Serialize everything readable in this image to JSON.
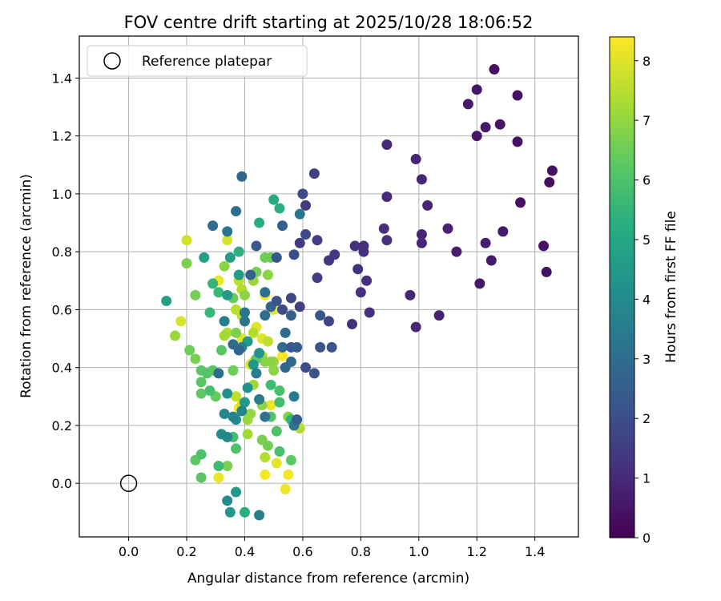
{
  "chart_data": {
    "type": "scatter",
    "title": "FOV centre drift starting at 2025/10/28 18:06:52",
    "xlabel": "Angular distance from reference (arcmin)",
    "ylabel": "Rotation from reference (arcmin)",
    "xlim": [
      -0.17,
      1.55
    ],
    "ylim": [
      -0.185,
      1.545
    ],
    "xticks": [
      0.0,
      0.2,
      0.4,
      0.6,
      0.8,
      1.0,
      1.2,
      1.4
    ],
    "yticks": [
      0.0,
      0.2,
      0.4,
      0.6,
      0.8,
      1.0,
      1.2,
      1.4
    ],
    "xtick_labels": [
      "0.0",
      "0.2",
      "0.4",
      "0.6",
      "0.8",
      "1.0",
      "1.2",
      "1.4"
    ],
    "ytick_labels": [
      "0.0",
      "0.2",
      "0.4",
      "0.6",
      "0.8",
      "1.0",
      "1.2",
      "1.4"
    ],
    "grid": true,
    "colormap": "viridis",
    "colorbar": {
      "label": "Hours from first FF file",
      "range": [
        0,
        8.4
      ],
      "ticks": [
        0,
        1,
        2,
        3,
        4,
        5,
        6,
        7,
        8
      ],
      "tick_labels": [
        "0",
        "1",
        "2",
        "3",
        "4",
        "5",
        "6",
        "7",
        "8"
      ]
    },
    "legend": {
      "position": "top-left",
      "entries": [
        {
          "label": "Reference platepar",
          "marker": "open-circle"
        }
      ]
    },
    "reference_point": {
      "x": 0.0,
      "y": 0.0
    },
    "points": [
      [
        1.26,
        1.43,
        0.3
      ],
      [
        1.2,
        1.36,
        0.5
      ],
      [
        1.34,
        1.34,
        0.4
      ],
      [
        1.17,
        1.31,
        0.6
      ],
      [
        1.28,
        1.24,
        0.5
      ],
      [
        1.23,
        1.23,
        0.6
      ],
      [
        1.2,
        1.2,
        0.5
      ],
      [
        1.34,
        1.18,
        0.4
      ],
      [
        0.89,
        1.17,
        1.0
      ],
      [
        0.99,
        1.12,
        0.9
      ],
      [
        1.46,
        1.08,
        0.4
      ],
      [
        1.45,
        1.04,
        0.3
      ],
      [
        1.01,
        1.05,
        0.9
      ],
      [
        0.89,
        0.99,
        1.0
      ],
      [
        1.35,
        0.97,
        0.4
      ],
      [
        1.03,
        0.96,
        0.9
      ],
      [
        1.1,
        0.88,
        0.8
      ],
      [
        1.29,
        0.87,
        0.6
      ],
      [
        0.88,
        0.88,
        1.1
      ],
      [
        1.01,
        0.86,
        0.9
      ],
      [
        1.23,
        0.83,
        0.7
      ],
      [
        1.01,
        0.83,
        0.9
      ],
      [
        0.89,
        0.84,
        1.1
      ],
      [
        1.43,
        0.82,
        0.4
      ],
      [
        0.81,
        0.82,
        1.1
      ],
      [
        0.78,
        0.82,
        1.2
      ],
      [
        0.81,
        0.8,
        1.1
      ],
      [
        1.13,
        0.8,
        0.7
      ],
      [
        1.25,
        0.77,
        0.6
      ],
      [
        0.82,
        0.7,
        1.1
      ],
      [
        1.21,
        0.69,
        0.6
      ],
      [
        0.79,
        0.74,
        1.2
      ],
      [
        1.44,
        0.73,
        0.4
      ],
      [
        0.97,
        0.65,
        0.9
      ],
      [
        0.8,
        0.66,
        1.1
      ],
      [
        0.83,
        0.59,
        1.1
      ],
      [
        0.77,
        0.55,
        1.2
      ],
      [
        0.99,
        0.54,
        0.9
      ],
      [
        1.07,
        0.58,
        0.8
      ],
      [
        0.59,
        0.83,
        1.4
      ],
      [
        0.71,
        0.79,
        1.3
      ],
      [
        0.69,
        0.77,
        1.3
      ],
      [
        0.65,
        0.84,
        1.5
      ],
      [
        0.61,
        0.96,
        1.4
      ],
      [
        0.64,
        1.07,
        1.6
      ],
      [
        0.65,
        0.71,
        1.5
      ],
      [
        0.59,
        0.61,
        1.6
      ],
      [
        0.69,
        0.56,
        1.7
      ],
      [
        0.6,
        1.0,
        1.9
      ],
      [
        0.61,
        0.86,
        1.9
      ],
      [
        0.57,
        0.79,
        2.0
      ],
      [
        0.56,
        0.64,
        1.8
      ],
      [
        0.53,
        0.6,
        1.9
      ],
      [
        0.61,
        0.4,
        2.0
      ],
      [
        0.64,
        0.38,
        2.1
      ],
      [
        0.66,
        0.47,
        2.2
      ],
      [
        0.7,
        0.47,
        2.1
      ],
      [
        0.39,
        1.06,
        2.8
      ],
      [
        0.51,
        0.78,
        2.2
      ],
      [
        0.51,
        0.63,
        2.1
      ],
      [
        0.44,
        0.82,
        2.3
      ],
      [
        0.53,
        0.89,
        2.5
      ],
      [
        0.66,
        0.58,
        2.3
      ],
      [
        0.37,
        0.94,
        3.0
      ],
      [
        0.29,
        0.89,
        3.1
      ],
      [
        0.34,
        0.87,
        3.3
      ],
      [
        0.59,
        0.93,
        3.3
      ],
      [
        0.56,
        0.58,
        2.6
      ],
      [
        0.47,
        0.66,
        3.1
      ],
      [
        0.49,
        0.61,
        2.7
      ],
      [
        0.58,
        0.47,
        2.5
      ],
      [
        0.56,
        0.47,
        2.4
      ],
      [
        0.53,
        0.47,
        2.9
      ],
      [
        0.54,
        0.52,
        3.0
      ],
      [
        0.56,
        0.42,
        2.9
      ],
      [
        0.54,
        0.4,
        2.8
      ],
      [
        0.47,
        0.58,
        3.1
      ],
      [
        0.42,
        0.72,
        2.6
      ],
      [
        0.4,
        0.59,
        3.3
      ],
      [
        0.4,
        0.56,
        3.3
      ],
      [
        0.38,
        0.46,
        2.7
      ],
      [
        0.36,
        0.48,
        2.9
      ],
      [
        0.33,
        0.56,
        3.6
      ],
      [
        0.31,
        0.38,
        3.0
      ],
      [
        0.39,
        0.47,
        3.6
      ],
      [
        0.44,
        0.38,
        3.5
      ],
      [
        0.47,
        0.23,
        3.2
      ],
      [
        0.45,
        0.29,
        3.5
      ],
      [
        0.57,
        0.3,
        3.5
      ],
      [
        0.58,
        0.22,
        2.5
      ],
      [
        0.57,
        0.2,
        3.3
      ],
      [
        0.33,
        0.24,
        3.8
      ],
      [
        0.34,
        0.16,
        3.9
      ],
      [
        0.32,
        0.17,
        4.0
      ],
      [
        0.36,
        0.23,
        3.7
      ],
      [
        0.39,
        0.25,
        3.8
      ],
      [
        0.37,
        0.22,
        4.0
      ],
      [
        0.34,
        0.31,
        4.2
      ],
      [
        0.4,
        0.28,
        4.5
      ],
      [
        0.41,
        0.33,
        4.2
      ],
      [
        0.43,
        0.41,
        4.4
      ],
      [
        0.45,
        0.45,
        4.3
      ],
      [
        0.41,
        0.49,
        4.5
      ],
      [
        0.34,
        0.65,
        4.4
      ],
      [
        0.38,
        0.72,
        4.6
      ],
      [
        0.35,
        0.78,
        4.6
      ],
      [
        0.26,
        0.78,
        4.7
      ],
      [
        0.5,
        0.98,
        5.1
      ],
      [
        0.52,
        0.95,
        5.3
      ],
      [
        0.45,
        0.9,
        5.2
      ],
      [
        0.38,
        0.8,
        5.3
      ],
      [
        0.13,
        0.63,
        4.7
      ],
      [
        0.29,
        0.69,
        5.5
      ],
      [
        0.31,
        0.66,
        5.6
      ],
      [
        0.28,
        0.59,
        5.6
      ],
      [
        0.49,
        0.34,
        5.7
      ],
      [
        0.52,
        0.32,
        5.9
      ],
      [
        0.52,
        0.28,
        5.8
      ],
      [
        0.49,
        0.23,
        6.0
      ],
      [
        0.51,
        0.18,
        6.0
      ],
      [
        0.52,
        0.11,
        5.9
      ],
      [
        0.56,
        0.22,
        5.4
      ],
      [
        0.56,
        0.08,
        6.3
      ],
      [
        0.36,
        0.16,
        5.8
      ],
      [
        0.37,
        0.12,
        6.0
      ],
      [
        0.31,
        0.06,
        5.7
      ],
      [
        0.25,
        0.1,
        6.0
      ],
      [
        0.23,
        0.08,
        6.3
      ],
      [
        0.25,
        0.02,
        6.2
      ],
      [
        0.34,
        0.06,
        6.7
      ],
      [
        0.36,
        0.39,
        6.5
      ],
      [
        0.27,
        0.38,
        6.1
      ],
      [
        0.29,
        0.39,
        6.2
      ],
      [
        0.25,
        0.39,
        6.2
      ],
      [
        0.25,
        0.35,
        6.2
      ],
      [
        0.28,
        0.32,
        5.9
      ],
      [
        0.25,
        0.31,
        6.3
      ],
      [
        0.3,
        0.3,
        6.4
      ],
      [
        0.32,
        0.46,
        6.2
      ],
      [
        0.21,
        0.46,
        6.5
      ],
      [
        0.23,
        0.43,
        6.7
      ],
      [
        0.16,
        0.51,
        7.1
      ],
      [
        0.2,
        0.76,
        6.7
      ],
      [
        0.23,
        0.65,
        6.6
      ],
      [
        0.33,
        0.75,
        6.9
      ],
      [
        0.36,
        0.64,
        6.4
      ],
      [
        0.37,
        0.52,
        6.7
      ],
      [
        0.4,
        0.65,
        6.9
      ],
      [
        0.44,
        0.73,
        6.6
      ],
      [
        0.47,
        0.78,
        6.5
      ],
      [
        0.48,
        0.72,
        6.9
      ],
      [
        0.49,
        0.78,
        6.5
      ],
      [
        0.44,
        0.43,
        6.3
      ],
      [
        0.47,
        0.42,
        6.9
      ],
      [
        0.49,
        0.42,
        6.9
      ],
      [
        0.5,
        0.39,
        6.9
      ],
      [
        0.5,
        0.42,
        7.1
      ],
      [
        0.46,
        0.15,
        6.7
      ],
      [
        0.48,
        0.13,
        6.6
      ],
      [
        0.41,
        0.17,
        7.2
      ],
      [
        0.41,
        0.22,
        7.1
      ],
      [
        0.42,
        0.24,
        7.0
      ],
      [
        0.43,
        0.34,
        7.2
      ],
      [
        0.46,
        0.44,
        7.3
      ],
      [
        0.46,
        0.27,
        6.9
      ],
      [
        0.47,
        0.09,
        7.4
      ],
      [
        0.59,
        0.19,
        7.4
      ],
      [
        0.55,
        0.23,
        6.8
      ],
      [
        0.37,
        0.6,
        7.5
      ],
      [
        0.39,
        0.58,
        7.5
      ],
      [
        0.39,
        0.67,
        7.4
      ],
      [
        0.38,
        0.7,
        7.5
      ],
      [
        0.43,
        0.7,
        7.1
      ],
      [
        0.48,
        0.49,
        7.6
      ],
      [
        0.43,
        0.52,
        7.4
      ],
      [
        0.37,
        0.3,
        7.6
      ],
      [
        0.39,
        0.27,
        7.8
      ],
      [
        0.33,
        0.51,
        7.2
      ],
      [
        0.34,
        0.52,
        7.4
      ],
      [
        0.2,
        0.84,
        7.8
      ],
      [
        0.34,
        0.84,
        7.9
      ],
      [
        0.18,
        0.56,
        7.9
      ],
      [
        0.43,
        0.42,
        7.9
      ],
      [
        0.44,
        0.54,
        8.0
      ],
      [
        0.46,
        0.5,
        8.0
      ],
      [
        0.5,
        0.6,
        8.1
      ],
      [
        0.47,
        0.65,
        8.2
      ],
      [
        0.31,
        0.7,
        8.2
      ],
      [
        0.53,
        0.44,
        8.3
      ],
      [
        0.42,
        0.41,
        8.1
      ],
      [
        0.39,
        0.5,
        8.0
      ],
      [
        0.37,
        0.3,
        8.2
      ],
      [
        0.38,
        0.26,
        8.3
      ],
      [
        0.49,
        0.27,
        8.2
      ],
      [
        0.31,
        0.02,
        8.2
      ],
      [
        0.47,
        0.03,
        8.3
      ],
      [
        0.51,
        0.07,
        8.1
      ],
      [
        0.55,
        0.03,
        8.3
      ],
      [
        0.54,
        -0.02,
        8.2
      ],
      [
        0.34,
        -0.06,
        4.0
      ],
      [
        0.37,
        -0.03,
        4.5
      ],
      [
        0.35,
        -0.1,
        4.4
      ],
      [
        0.4,
        -0.1,
        5.3
      ],
      [
        0.45,
        -0.11,
        3.6
      ]
    ]
  }
}
